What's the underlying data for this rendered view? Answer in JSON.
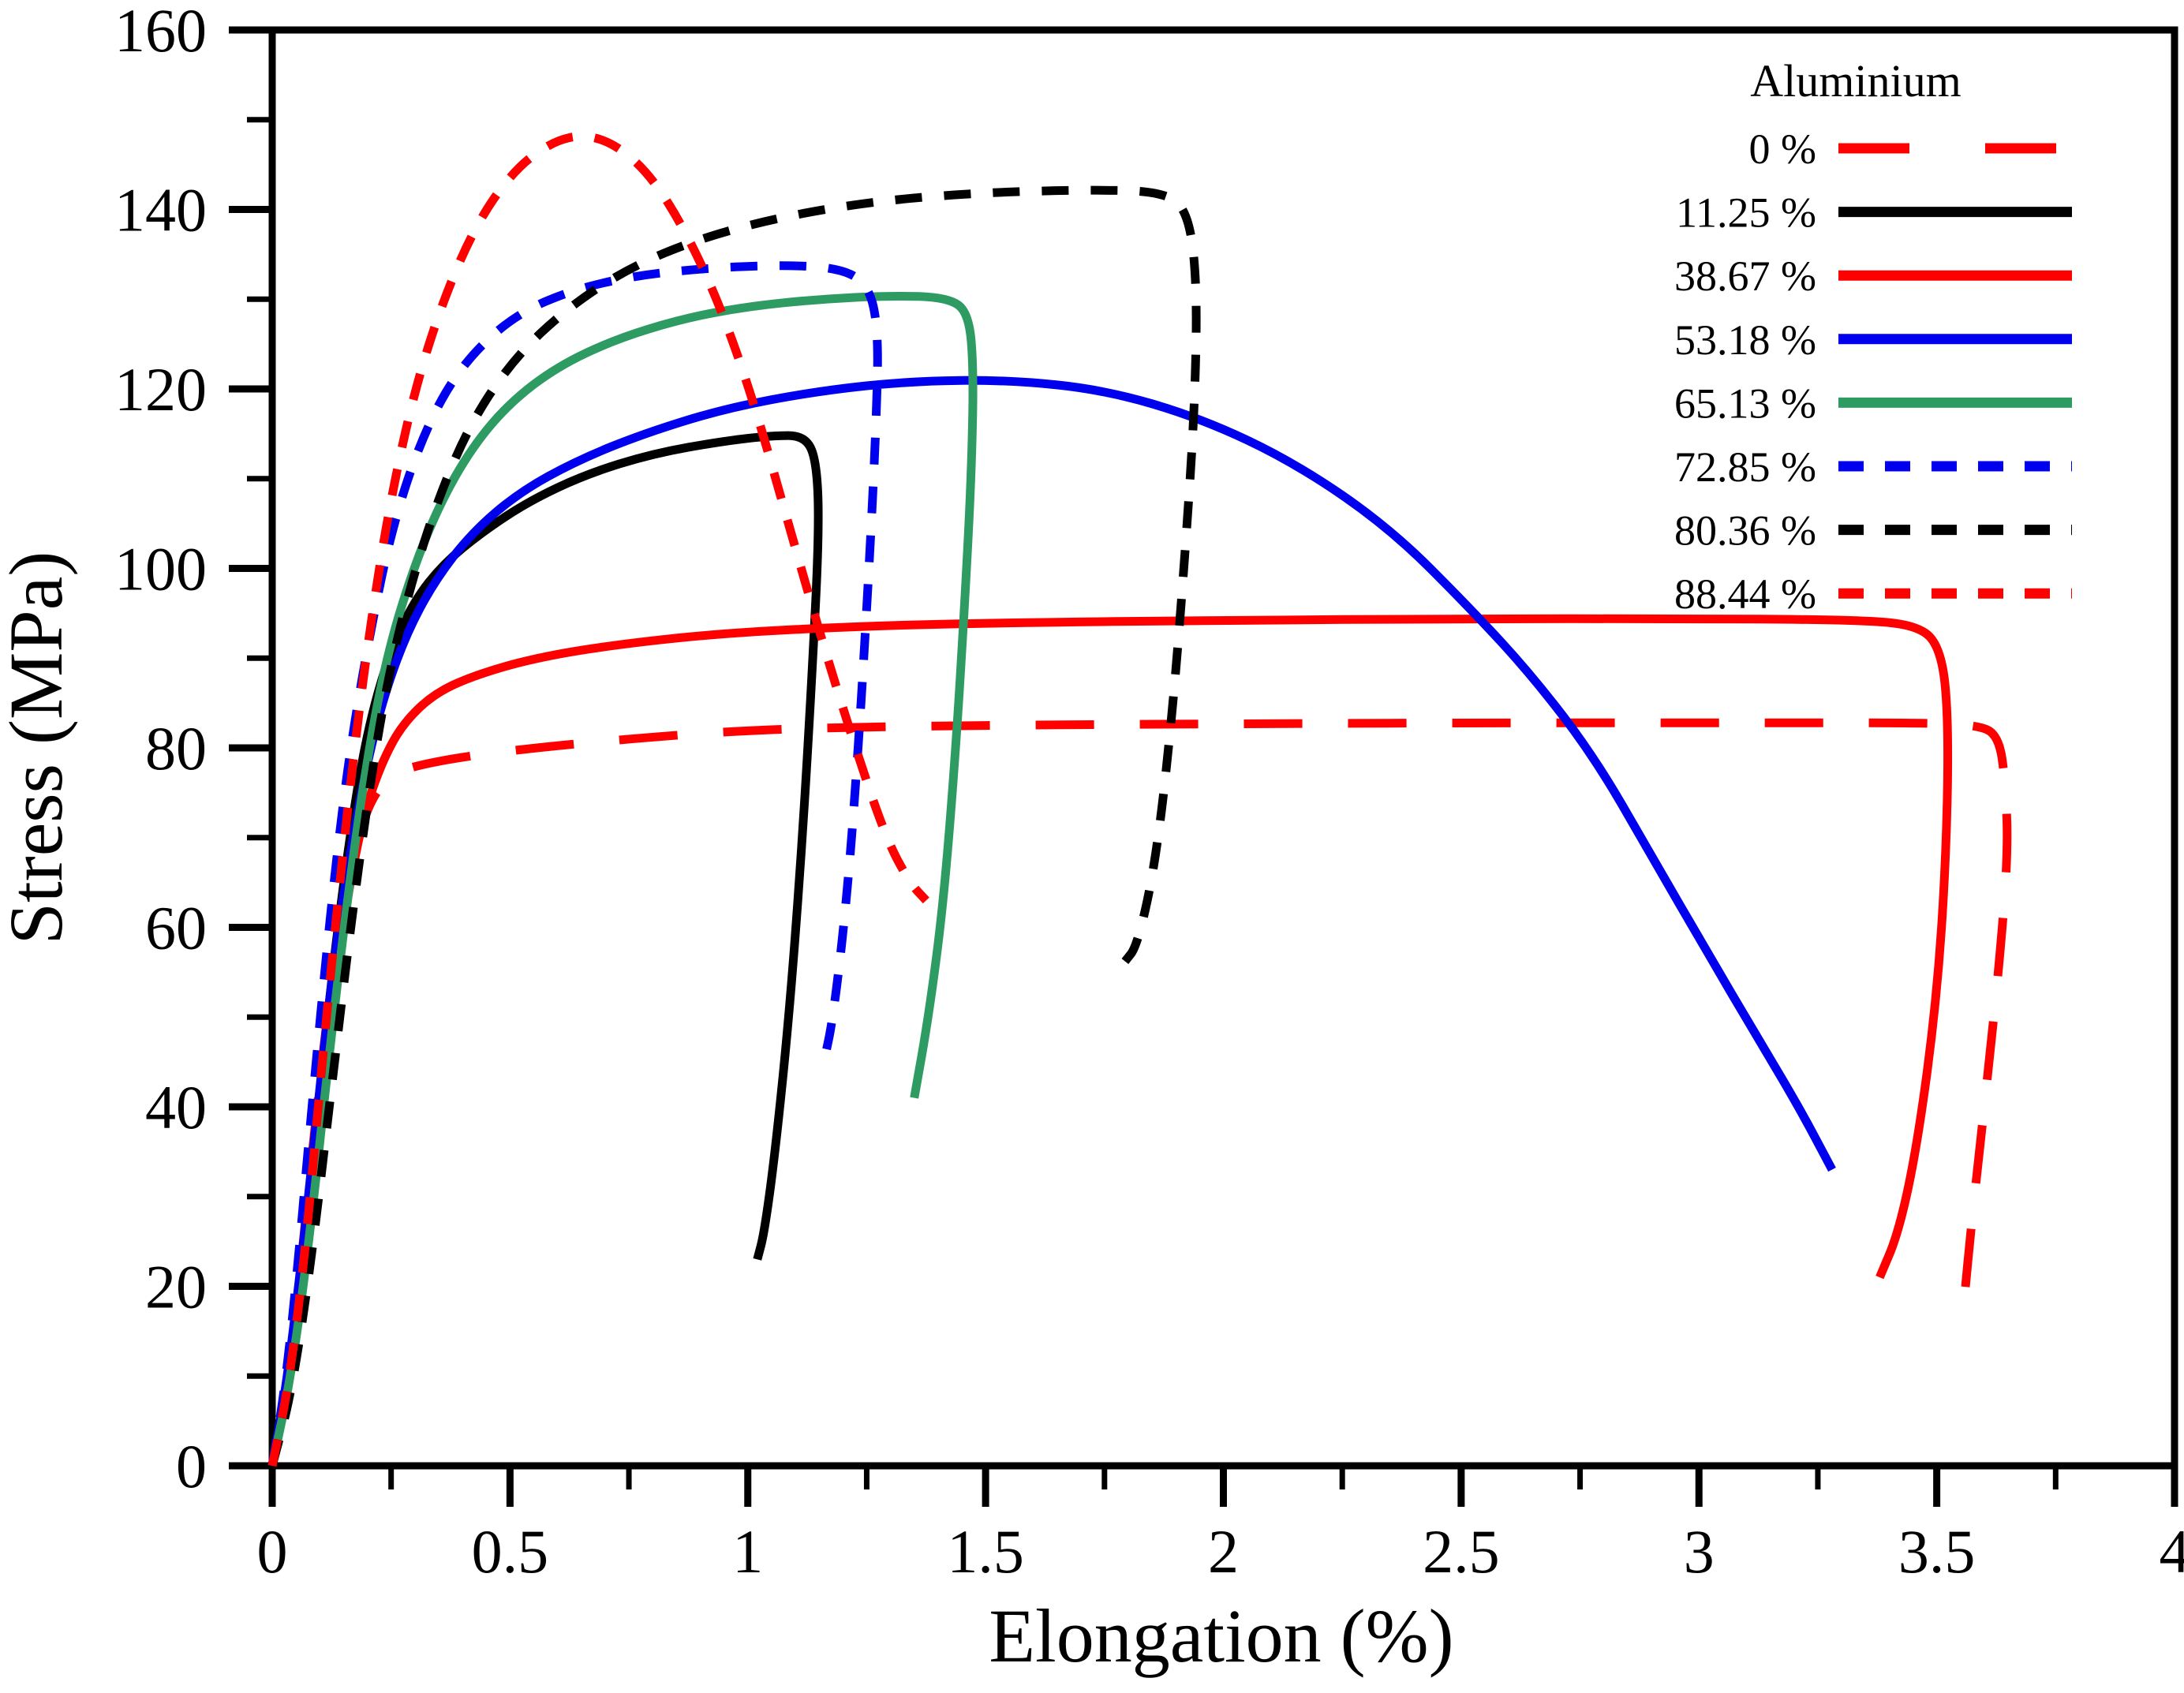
{
  "figure": {
    "background": "#ffffff"
  },
  "chart_data": {
    "type": "line",
    "title": "",
    "xlabel": "Elongation (%)",
    "ylabel": "Stress (MPa)",
    "xlim": [
      0,
      4
    ],
    "ylim": [
      0,
      160
    ],
    "grid": false,
    "frame": true,
    "x_ticks": [
      {
        "v": 0,
        "label": "0"
      },
      {
        "v": 0.5,
        "label": "0.5"
      },
      {
        "v": 1,
        "label": "1"
      },
      {
        "v": 1.5,
        "label": "1.5"
      },
      {
        "v": 2,
        "label": "2"
      },
      {
        "v": 2.5,
        "label": "2.5"
      },
      {
        "v": 3,
        "label": "3"
      },
      {
        "v": 3.5,
        "label": "3.5"
      },
      {
        "v": 4,
        "label": "4"
      }
    ],
    "x_minor_step": 0.25,
    "y_ticks": [
      {
        "v": 0,
        "label": "0"
      },
      {
        "v": 20,
        "label": "20"
      },
      {
        "v": 40,
        "label": "40"
      },
      {
        "v": 60,
        "label": "60"
      },
      {
        "v": 80,
        "label": "80"
      },
      {
        "v": 100,
        "label": "100"
      },
      {
        "v": 120,
        "label": "120"
      },
      {
        "v": 140,
        "label": "140"
      },
      {
        "v": 160,
        "label": "160"
      }
    ],
    "y_minor_step": 10,
    "legend": {
      "title": "Aluminium",
      "position": "top-right"
    },
    "series": [
      {
        "name": "0 %",
        "color": "#ff0000",
        "style": "long-dash",
        "points": [
          [
            0,
            0
          ],
          [
            0.03,
            8
          ],
          [
            0.06,
            22
          ],
          [
            0.09,
            38
          ],
          [
            0.12,
            52
          ],
          [
            0.15,
            63
          ],
          [
            0.18,
            70
          ],
          [
            0.21,
            74.5
          ],
          [
            0.25,
            77
          ],
          [
            0.3,
            78
          ],
          [
            0.4,
            79
          ],
          [
            0.55,
            80
          ],
          [
            0.75,
            81
          ],
          [
            1.0,
            82
          ],
          [
            1.3,
            82.4
          ],
          [
            1.7,
            82.6
          ],
          [
            2.1,
            82.7
          ],
          [
            2.6,
            82.8
          ],
          [
            3.1,
            82.8
          ],
          [
            3.45,
            82.8
          ],
          [
            3.58,
            82.6
          ],
          [
            3.63,
            81.5
          ],
          [
            3.645,
            76
          ],
          [
            3.65,
            68
          ],
          [
            3.63,
            55
          ],
          [
            3.6,
            40
          ],
          [
            3.575,
            28
          ],
          [
            3.555,
            17
          ]
        ]
      },
      {
        "name": "11.25 %",
        "color": "#000000",
        "style": "solid",
        "points": [
          [
            0,
            0
          ],
          [
            0.03,
            8
          ],
          [
            0.06,
            20
          ],
          [
            0.09,
            36
          ],
          [
            0.12,
            52
          ],
          [
            0.15,
            65
          ],
          [
            0.18,
            76
          ],
          [
            0.21,
            84
          ],
          [
            0.25,
            91
          ],
          [
            0.3,
            96.5
          ],
          [
            0.36,
            100.5
          ],
          [
            0.44,
            104
          ],
          [
            0.54,
            107.5
          ],
          [
            0.66,
            110.5
          ],
          [
            0.8,
            112.8
          ],
          [
            0.95,
            114.2
          ],
          [
            1.05,
            114.8
          ],
          [
            1.12,
            114.8
          ],
          [
            1.145,
            112
          ],
          [
            1.15,
            104
          ],
          [
            1.135,
            88
          ],
          [
            1.115,
            70
          ],
          [
            1.09,
            52
          ],
          [
            1.06,
            36
          ],
          [
            1.035,
            26
          ],
          [
            1.02,
            23
          ]
        ]
      },
      {
        "name": "38.67 %",
        "color": "#ff0000",
        "style": "solid",
        "points": [
          [
            0,
            0
          ],
          [
            0.035,
            10
          ],
          [
            0.07,
            25
          ],
          [
            0.105,
            42
          ],
          [
            0.14,
            57
          ],
          [
            0.17,
            67
          ],
          [
            0.2,
            74
          ],
          [
            0.24,
            79.5
          ],
          [
            0.28,
            83
          ],
          [
            0.34,
            86
          ],
          [
            0.42,
            88
          ],
          [
            0.55,
            90
          ],
          [
            0.72,
            91.5
          ],
          [
            0.95,
            92.8
          ],
          [
            1.25,
            93.6
          ],
          [
            1.6,
            94
          ],
          [
            2.0,
            94.2
          ],
          [
            2.5,
            94.4
          ],
          [
            2.95,
            94.4
          ],
          [
            3.3,
            94.3
          ],
          [
            3.46,
            93.8
          ],
          [
            3.51,
            91
          ],
          [
            3.525,
            83
          ],
          [
            3.52,
            68
          ],
          [
            3.5,
            52
          ],
          [
            3.46,
            36
          ],
          [
            3.42,
            26
          ],
          [
            3.38,
            21
          ]
        ]
      },
      {
        "name": "53.18 %",
        "color": "#0000ee",
        "style": "solid",
        "points": [
          [
            0,
            0
          ],
          [
            0.03,
            9
          ],
          [
            0.06,
            22
          ],
          [
            0.09,
            37
          ],
          [
            0.12,
            52
          ],
          [
            0.15,
            64
          ],
          [
            0.19,
            76
          ],
          [
            0.23,
            85
          ],
          [
            0.28,
            92.5
          ],
          [
            0.34,
            98.5
          ],
          [
            0.42,
            104
          ],
          [
            0.52,
            108.5
          ],
          [
            0.64,
            112
          ],
          [
            0.78,
            115
          ],
          [
            0.95,
            117.8
          ],
          [
            1.15,
            119.8
          ],
          [
            1.35,
            120.9
          ],
          [
            1.55,
            121
          ],
          [
            1.75,
            119.9
          ],
          [
            1.95,
            116.8
          ],
          [
            2.15,
            111.8
          ],
          [
            2.35,
            104.5
          ],
          [
            2.52,
            95.5
          ],
          [
            2.65,
            88
          ],
          [
            2.78,
            79
          ],
          [
            2.9,
            68
          ],
          [
            3.02,
            57
          ],
          [
            3.12,
            48
          ],
          [
            3.21,
            40
          ],
          [
            3.28,
            33
          ]
        ]
      },
      {
        "name": "65.13 %",
        "color": "#2e9b63",
        "style": "solid",
        "points": [
          [
            0,
            0
          ],
          [
            0.04,
            10
          ],
          [
            0.08,
            26
          ],
          [
            0.12,
            46
          ],
          [
            0.16,
            64
          ],
          [
            0.2,
            79
          ],
          [
            0.24,
            90
          ],
          [
            0.29,
            99
          ],
          [
            0.35,
            107
          ],
          [
            0.42,
            113.5
          ],
          [
            0.5,
            118.5
          ],
          [
            0.6,
            122.5
          ],
          [
            0.72,
            125.5
          ],
          [
            0.86,
            127.8
          ],
          [
            1.0,
            129.2
          ],
          [
            1.15,
            130
          ],
          [
            1.3,
            130.4
          ],
          [
            1.42,
            130.2
          ],
          [
            1.465,
            128.5
          ],
          [
            1.475,
            122
          ],
          [
            1.47,
            110
          ],
          [
            1.455,
            95
          ],
          [
            1.435,
            78
          ],
          [
            1.41,
            62
          ],
          [
            1.38,
            50
          ],
          [
            1.35,
            41
          ]
        ]
      },
      {
        "name": "72.85 %",
        "color": "#0000ee",
        "style": "dash",
        "points": [
          [
            0,
            0
          ],
          [
            0.025,
            8
          ],
          [
            0.05,
            20
          ],
          [
            0.08,
            38
          ],
          [
            0.11,
            55
          ],
          [
            0.14,
            70
          ],
          [
            0.17,
            82
          ],
          [
            0.21,
            94
          ],
          [
            0.25,
            104
          ],
          [
            0.3,
            112.5
          ],
          [
            0.36,
            119.5
          ],
          [
            0.43,
            124.5
          ],
          [
            0.52,
            128.5
          ],
          [
            0.63,
            131
          ],
          [
            0.76,
            132.6
          ],
          [
            0.9,
            133.4
          ],
          [
            1.05,
            133.8
          ],
          [
            1.18,
            133.6
          ],
          [
            1.25,
            132
          ],
          [
            1.275,
            127
          ],
          [
            1.27,
            116
          ],
          [
            1.255,
            100
          ],
          [
            1.235,
            82
          ],
          [
            1.21,
            64
          ],
          [
            1.18,
            50
          ],
          [
            1.16,
            45
          ]
        ]
      },
      {
        "name": "80.36 %",
        "color": "#000000",
        "style": "dash",
        "points": [
          [
            0,
            0
          ],
          [
            0.04,
            8
          ],
          [
            0.08,
            22
          ],
          [
            0.12,
            40
          ],
          [
            0.16,
            58
          ],
          [
            0.2,
            74
          ],
          [
            0.24,
            87
          ],
          [
            0.29,
            98
          ],
          [
            0.35,
            108
          ],
          [
            0.42,
            116.5
          ],
          [
            0.51,
            123.5
          ],
          [
            0.62,
            129
          ],
          [
            0.75,
            133.5
          ],
          [
            0.9,
            136.8
          ],
          [
            1.08,
            139.3
          ],
          [
            1.28,
            141
          ],
          [
            1.5,
            141.9
          ],
          [
            1.72,
            142.2
          ],
          [
            1.87,
            142
          ],
          [
            1.925,
            140
          ],
          [
            1.945,
            132
          ],
          [
            1.94,
            118
          ],
          [
            1.92,
            102
          ],
          [
            1.895,
            85
          ],
          [
            1.86,
            68
          ],
          [
            1.82,
            58
          ],
          [
            1.79,
            56
          ]
        ]
      },
      {
        "name": "88.44 %",
        "color": "#ff0000",
        "style": "dash",
        "points": [
          [
            0,
            0
          ],
          [
            0.035,
            9
          ],
          [
            0.07,
            24
          ],
          [
            0.105,
            45
          ],
          [
            0.14,
            64
          ],
          [
            0.175,
            81
          ],
          [
            0.21,
            95
          ],
          [
            0.25,
            108
          ],
          [
            0.3,
            120
          ],
          [
            0.36,
            130
          ],
          [
            0.43,
            138.5
          ],
          [
            0.51,
            144.5
          ],
          [
            0.59,
            147.6
          ],
          [
            0.66,
            148.4
          ],
          [
            0.73,
            147
          ],
          [
            0.8,
            143.5
          ],
          [
            0.87,
            137.5
          ],
          [
            0.94,
            129.5
          ],
          [
            1.01,
            119
          ],
          [
            1.08,
            106
          ],
          [
            1.15,
            93
          ],
          [
            1.22,
            81
          ],
          [
            1.29,
            70
          ],
          [
            1.34,
            65
          ],
          [
            1.375,
            63
          ]
        ]
      }
    ]
  }
}
